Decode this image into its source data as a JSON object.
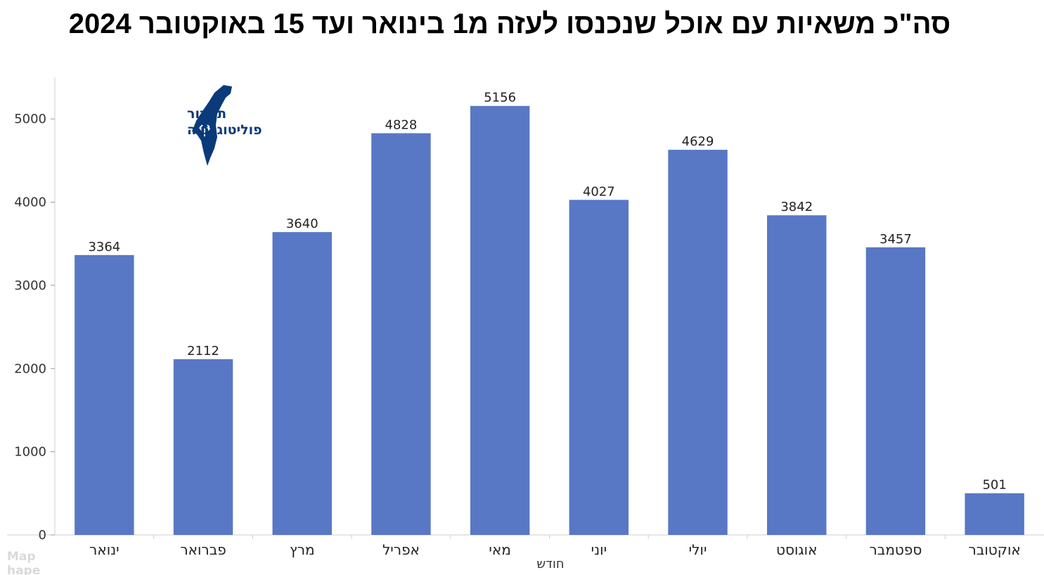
{
  "title": "סה\"כ משאיות עם אוכל שנכנסו לעזה מ1 בינואר ועד 15 באוקטובר 2024",
  "logo": {
    "line1": "תמרור",
    "line2": "פוליטוגרפיה",
    "color": "#0b3a7a"
  },
  "faint_text": [
    "Map",
    "hape"
  ],
  "chart_data": {
    "type": "bar",
    "categories": [
      "ינואר",
      "פברואר",
      "מרץ",
      "אפריל",
      "מאי",
      "יוני",
      "יולי",
      "אוגוסט",
      "ספטמבר",
      "אוקטובר"
    ],
    "values": [
      3364,
      2112,
      3640,
      4828,
      5156,
      4027,
      4629,
      3842,
      3457,
      501
    ],
    "xlabel": "חודש",
    "ylabel": "",
    "ylim": [
      0,
      5500
    ],
    "yticks": [
      0,
      1000,
      2000,
      3000,
      4000,
      5000
    ],
    "bar_color": "#5877c5",
    "grid": false,
    "data_labels": true
  }
}
